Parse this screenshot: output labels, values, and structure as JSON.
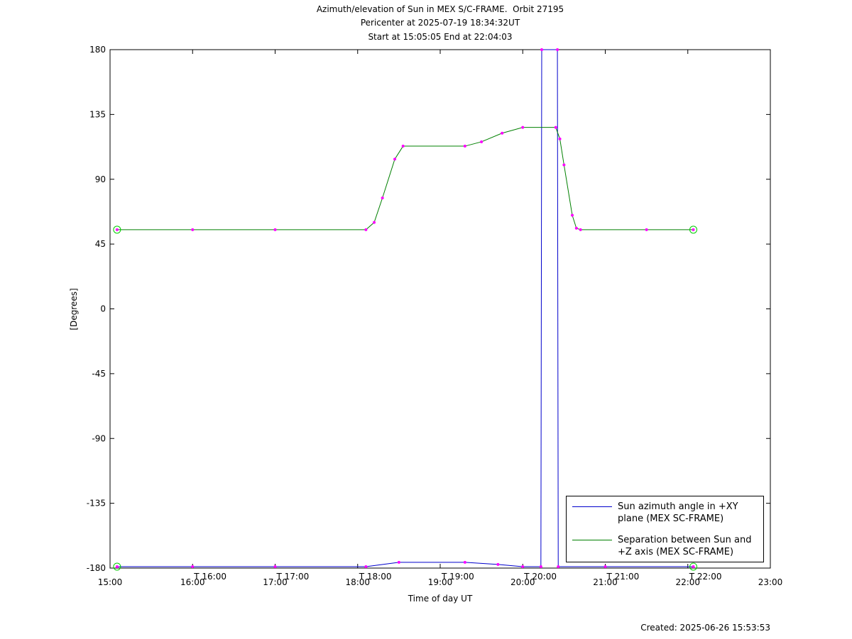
{
  "chart_data": {
    "type": "line",
    "title": "Azimuth/elevation of Sun in MEX S/C-FRAME.  Orbit 27195",
    "subtitle": [
      "Pericenter at 2025-07-19 18:34:32UT",
      "Start at 15:05:05 End at 22:04:03"
    ],
    "x_label": "Time of day UT",
    "y_label": "[Degrees]",
    "footer": "Created: 2025-06-26 15:53:53",
    "xlim": [
      15,
      23
    ],
    "xticks": [
      {
        "value": 15,
        "label": "15:00"
      },
      {
        "value": 16,
        "label": "16:00"
      },
      {
        "value": 17,
        "label": "17:00"
      },
      {
        "value": 18,
        "label": "18:00"
      },
      {
        "value": 19,
        "label": "19:00"
      },
      {
        "value": 20,
        "label": "20:00"
      },
      {
        "value": 21,
        "label": "21:00"
      },
      {
        "value": 22,
        "label": "22:00"
      },
      {
        "value": 23,
        "label": "23:00"
      }
    ],
    "x_annotations": [
      {
        "x": 16,
        "label": "T 16:00"
      },
      {
        "x": 17,
        "label": "T 17:00"
      },
      {
        "x": 18,
        "label": "T 18:00"
      },
      {
        "x": 19,
        "label": "T 19:00"
      },
      {
        "x": 20,
        "label": "T 20:00"
      },
      {
        "x": 21,
        "label": "T 21:00"
      },
      {
        "x": 22,
        "label": "T 22:00"
      }
    ],
    "ylim": [
      -180,
      180
    ],
    "yticks": [
      180,
      135,
      90,
      45,
      0,
      -45,
      -90,
      -135,
      -180
    ],
    "grid": false,
    "marker_color": "#ff00ff",
    "series": [
      {
        "name": "Sun azimuth angle in +XY plane (MEX SC-FRAME)",
        "color": "#0000cc",
        "x": [
          15.085,
          16,
          17,
          18.1,
          18.5,
          19.3,
          19.7,
          20.0,
          20.22,
          20.23,
          20.42,
          20.43,
          21,
          22.067
        ],
        "values": [
          -179,
          -179,
          -179,
          -179,
          -176,
          -176,
          -177.5,
          -179,
          -179,
          180,
          180,
          -179,
          -179,
          -179
        ]
      },
      {
        "name": "Separation between Sun and +Z axis (MEX SC-FRAME)",
        "color": "#008000",
        "x": [
          15.085,
          16,
          17,
          18.1,
          18.2,
          18.3,
          18.45,
          18.55,
          19.3,
          19.5,
          19.75,
          20.0,
          20.4,
          20.45,
          20.5,
          20.6,
          20.65,
          20.7,
          21.5,
          22.067
        ],
        "values": [
          55,
          55,
          55,
          55,
          60,
          77,
          104,
          113,
          113,
          116,
          122,
          126,
          126,
          118,
          100,
          65,
          56,
          55,
          55,
          55
        ]
      }
    ]
  }
}
